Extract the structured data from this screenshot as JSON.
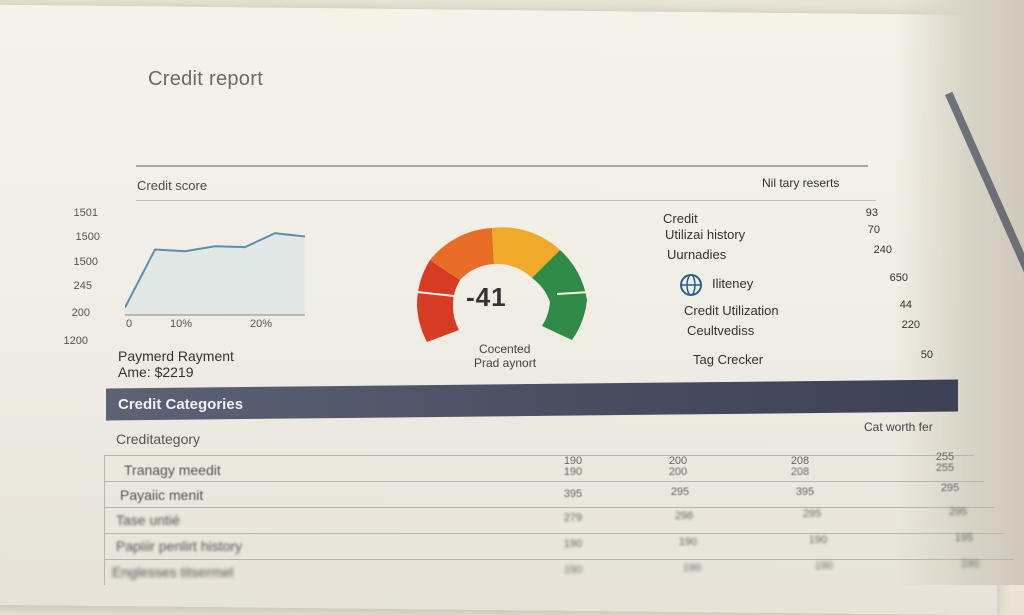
{
  "report": {
    "title": "Credit report",
    "score_section_label": "Credit score",
    "summary_header": "Nil tary reserts"
  },
  "left_chart": {
    "y_ticks": [
      "1501",
      "1500",
      "1500",
      "245",
      "200",
      "1200"
    ],
    "x_ticks": [
      "0",
      "10%",
      "20%"
    ],
    "series_values": [
      245,
      600,
      590,
      620,
      615,
      700,
      680
    ]
  },
  "payment": {
    "line1": "Paymerd Rayment",
    "line2": "Ame: $2219"
  },
  "gauge": {
    "value": "-41",
    "caption1": "Cocented",
    "caption2": "Prad aynort",
    "colors": [
      "#d93a22",
      "#f0a428",
      "#2e8a47"
    ]
  },
  "right_list": {
    "items": [
      {
        "label": "Credit",
        "value": "93"
      },
      {
        "label": "Utilizai history",
        "value": "70"
      },
      {
        "label": "Uurnadies",
        "value": "240"
      },
      {
        "label": "Iliteney",
        "value": "650"
      },
      {
        "label": "Credit Utilization",
        "value": "44"
      },
      {
        "label": "Ceultvediss",
        "value": "220"
      },
      {
        "label": "Tag Crecker",
        "value": "50"
      }
    ]
  },
  "categories": {
    "banner_title": "Credit Categories",
    "subheader_left": "Creditategory",
    "subheader_right": "Cat worth fer",
    "column_headers": [
      "190",
      "200",
      "208",
      "255"
    ],
    "rows": [
      {
        "label": "Tranagy meedit",
        "values": [
          "190",
          "200",
          "208",
          "255"
        ]
      },
      {
        "label": "Payaiic menit",
        "values": [
          "395",
          "295",
          "395",
          "295"
        ]
      },
      {
        "label": "Tase untié",
        "values": [
          "279",
          "298",
          "295",
          "295"
        ]
      },
      {
        "label": "Papiiir penlirt history",
        "values": [
          "190",
          "190",
          "190",
          "195"
        ]
      },
      {
        "label": "Englesses titsermel",
        "values": [
          "190",
          "190",
          "190",
          "190"
        ]
      }
    ]
  }
}
